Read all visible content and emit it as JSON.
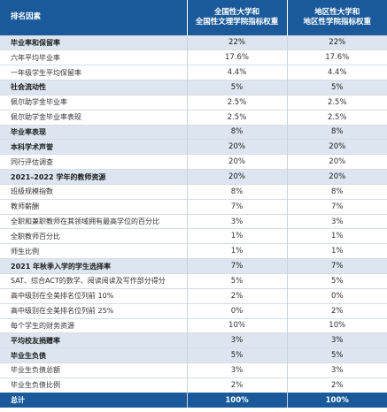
{
  "header": {
    "col1": "排名因素",
    "col2": [
      "全国性大学和",
      "全国性文理学院指标权重"
    ],
    "col3": [
      "地区性大学和",
      "地区性学院指标权重"
    ]
  },
  "rows": [
    {
      "type": "cat",
      "label": "毕业率和保留率",
      "v1": "22%",
      "v2": "22%"
    },
    {
      "type": "sub",
      "label": "六年平均毕业率",
      "v1": "17.6%",
      "v2": "17.6%"
    },
    {
      "type": "sub",
      "label": "一年级学生平均保留率",
      "v1": "4.4%",
      "v2": "4.4%"
    },
    {
      "type": "cat",
      "label": "社会流动性",
      "v1": "5%",
      "v2": "5%"
    },
    {
      "type": "sub",
      "label": "佩尔助学金毕业率",
      "v1": "2.5%",
      "v2": "2.5%"
    },
    {
      "type": "sub",
      "label": "佩尔助学金毕业率表现",
      "v1": "2.5%",
      "v2": "2.5%"
    },
    {
      "type": "cat",
      "label": "毕业率表现",
      "v1": "8%",
      "v2": "8%"
    },
    {
      "type": "cat",
      "label": "本科学术声誉",
      "v1": "20%",
      "v2": "20%"
    },
    {
      "type": "sub",
      "label": "同行评估调查",
      "v1": "20%",
      "v2": "20%"
    },
    {
      "type": "cat",
      "label": "2021–2022 学年的教师资源",
      "v1": "20%",
      "v2": "20%"
    },
    {
      "type": "sub",
      "label": "班级规模指数",
      "v1": "8%",
      "v2": "8%"
    },
    {
      "type": "sub",
      "label": "教师薪酬",
      "v1": "7%",
      "v2": "7%"
    },
    {
      "type": "sub",
      "label": "全职和兼职教师在其领域拥有最高学位的百分比",
      "v1": "3%",
      "v2": "3%"
    },
    {
      "type": "sub",
      "label": "全职教师百分比",
      "v1": "1%",
      "v2": "1%"
    },
    {
      "type": "sub",
      "label": "师生比例",
      "v1": "1%",
      "v2": "1%"
    },
    {
      "type": "cat",
      "label": "2021 年秋季入学的学生选择率",
      "v1": "7%",
      "v2": "7%"
    },
    {
      "type": "sub",
      "label": "SAT、综合ACT的数学、阅读阅读及写作部分得分",
      "v1": "5%",
      "v2": "5%"
    },
    {
      "type": "sub",
      "label": "高中级别在全美排名位列前 10%",
      "v1": "2%",
      "v2": "0%"
    },
    {
      "type": "sub",
      "label": "高中级别在全美排名位列前 25%",
      "v1": "0%",
      "v2": "2%"
    },
    {
      "type": "sub",
      "label": "每个学生的财务资源",
      "v1": "10%",
      "v2": "10%"
    },
    {
      "type": "cat",
      "label": "平均校友捐赠率",
      "v1": "3%",
      "v2": "3%"
    },
    {
      "type": "cat",
      "label": "毕业生负债",
      "v1": "5%",
      "v2": "5%"
    },
    {
      "type": "sub",
      "label": "毕业生负债总额",
      "v1": "3%",
      "v2": "3%"
    },
    {
      "type": "sub",
      "label": "毕业生负债比例",
      "v1": "2%",
      "v2": "2%"
    }
  ],
  "total": {
    "label": "总计",
    "v1": "100%",
    "v2": "100%"
  }
}
